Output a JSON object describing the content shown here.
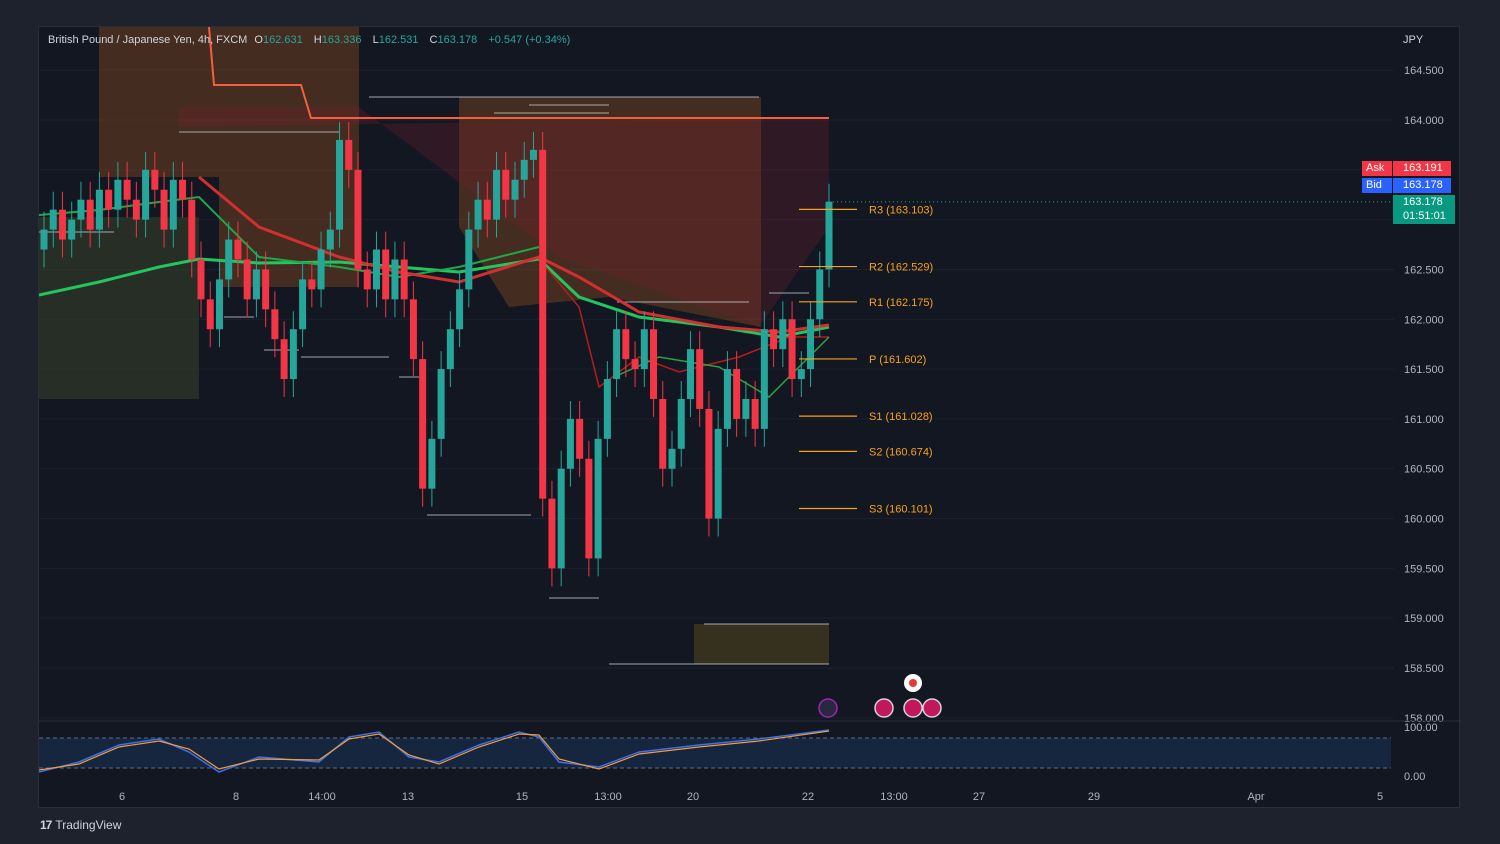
{
  "header": {
    "symbol": "British Pound / Japanese Yen, 4h, FXCM",
    "o_label": "O",
    "o_value": "162.631",
    "h_label": "H",
    "h_value": "163.336",
    "l_label": "L",
    "l_value": "162.531",
    "c_label": "C",
    "c_value": "163.178",
    "change": "+0.547 (+0.34%)",
    "currency": "JPY"
  },
  "price_scale": {
    "ask_label": "Ask",
    "ask_value": "163.191",
    "bid_label": "Bid",
    "bid_value": "163.178",
    "last_value": "163.178",
    "countdown": "01:51:01"
  },
  "colors": {
    "up": "#26a69a",
    "down": "#f23645",
    "pivot": "#f7a21b",
    "ask": "#f23645",
    "bid": "#2962ff",
    "background": "#131722"
  },
  "chart_data": {
    "type": "candlestick",
    "ylim": [
      158.0,
      164.8
    ],
    "y_ticks": [
      "164.500",
      "164.000",
      "163.500",
      "163.000",
      "162.500",
      "162.000",
      "161.500",
      "161.000",
      "160.500",
      "160.000",
      "159.500",
      "159.000",
      "158.500",
      "158.000"
    ],
    "x_ticks": [
      "6",
      "8",
      "14:00",
      "13",
      "15",
      "13:00",
      "20",
      "22",
      "13:00",
      "27",
      "29",
      "Apr",
      "5"
    ],
    "pivots": [
      {
        "label": "R3 (163.103)",
        "value": 163.103
      },
      {
        "label": "R2 (162.529)",
        "value": 162.529
      },
      {
        "label": "R1 (162.175)",
        "value": 162.175
      },
      {
        "label": "P (161.602)",
        "value": 161.602
      },
      {
        "label": "S1 (161.028)",
        "value": 161.028
      },
      {
        "label": "S2 (160.674)",
        "value": 160.674
      },
      {
        "label": "S3 (160.101)",
        "value": 160.101
      }
    ],
    "series": [
      {
        "name": "GBPJPY 4h",
        "closes": [
          162.9,
          163.1,
          162.8,
          163.0,
          163.2,
          162.9,
          163.3,
          163.1,
          163.4,
          163.2,
          163.0,
          163.5,
          163.3,
          162.9,
          163.4,
          163.2,
          162.6,
          162.2,
          161.9,
          162.4,
          162.8,
          162.6,
          162.2,
          162.5,
          162.1,
          161.8,
          161.4,
          161.9,
          162.4,
          162.3,
          162.7,
          162.9,
          163.8,
          163.5,
          162.5,
          162.3,
          162.7,
          162.2,
          162.6,
          162.2,
          161.6,
          160.3,
          160.8,
          161.5,
          161.9,
          162.3,
          162.9,
          163.2,
          163.0,
          163.5,
          163.2,
          163.4,
          163.6,
          163.7,
          160.2,
          159.5,
          160.5,
          161.0,
          160.6,
          159.6,
          160.8,
          161.4,
          161.9,
          161.6,
          161.5,
          161.9,
          161.2,
          160.5,
          160.7,
          161.2,
          161.7,
          161.1,
          160.0,
          160.9,
          161.5,
          161.0,
          161.2,
          160.9,
          161.9,
          161.7,
          162.0,
          161.4,
          161.5,
          162.0,
          162.5,
          163.18
        ]
      }
    ],
    "oscillator": {
      "ylim": [
        0,
        100
      ],
      "ticks": [
        "100.00",
        "0.00"
      ],
      "upper": 80,
      "lower": 20
    }
  },
  "footer": {
    "brand": "TradingView",
    "logo_text": "17"
  }
}
